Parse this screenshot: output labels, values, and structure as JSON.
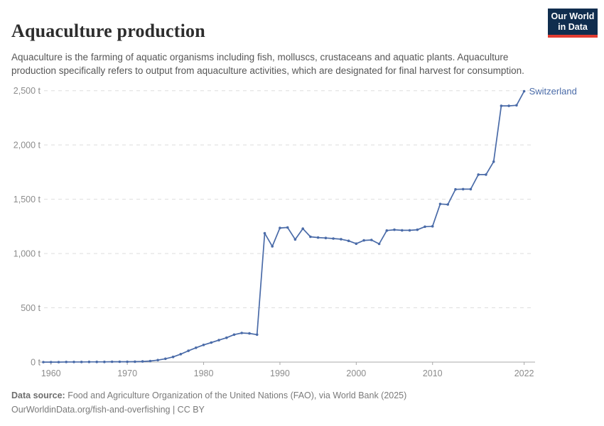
{
  "header": {
    "title": "Aquaculture production",
    "subtitle": "Aquaculture is the farming of aquatic organisms including fish, molluscs, crustaceans and aquatic plants. Aquaculture production specifically refers to output from aquaculture activities, which are designated for final harvest for consumption."
  },
  "logo": {
    "line1": "Our World",
    "line2": "in Data",
    "bg_color": "#102d4e",
    "bar_color": "#e23c31"
  },
  "chart_data": {
    "type": "line",
    "title": "Aquaculture production",
    "unit": "t",
    "xlabel": "",
    "ylabel": "",
    "ylim": [
      0,
      2500
    ],
    "grid": "horizontal-dashed",
    "legend_position": "end-of-line-label",
    "ytick_values": [
      0,
      500,
      1000,
      1500,
      2000,
      2500
    ],
    "ytick_labels": [
      "0 t",
      "500 t",
      "1,000 t",
      "1,500 t",
      "2,000 t",
      "2,500 t"
    ],
    "xtick_values": [
      1960,
      1970,
      1980,
      1990,
      2000,
      2010,
      2022
    ],
    "x": [
      1959,
      1960,
      1961,
      1962,
      1963,
      1964,
      1965,
      1966,
      1967,
      1968,
      1969,
      1970,
      1971,
      1972,
      1973,
      1974,
      1975,
      1976,
      1977,
      1978,
      1979,
      1980,
      1981,
      1982,
      1983,
      1984,
      1985,
      1986,
      1987,
      1988,
      1989,
      1990,
      1991,
      1992,
      1993,
      1994,
      1995,
      1996,
      1997,
      1998,
      1999,
      2000,
      2001,
      2002,
      2003,
      2004,
      2005,
      2006,
      2007,
      2008,
      2009,
      2010,
      2011,
      2012,
      2013,
      2014,
      2015,
      2016,
      2017,
      2018,
      2019,
      2020,
      2021,
      2022
    ],
    "series": [
      {
        "name": "Switzerland",
        "color": "#4a6ba8",
        "values": [
          0,
          0,
          0,
          1,
          1,
          1,
          2,
          2,
          2,
          3,
          3,
          3,
          4,
          6,
          10,
          18,
          31,
          48,
          73,
          104,
          132,
          158,
          180,
          202,
          224,
          253,
          268,
          264,
          253,
          1187,
          1066,
          1235,
          1240,
          1130,
          1229,
          1154,
          1147,
          1143,
          1138,
          1132,
          1117,
          1091,
          1121,
          1125,
          1089,
          1212,
          1219,
          1214,
          1214,
          1219,
          1247,
          1251,
          1456,
          1452,
          1591,
          1593,
          1593,
          1727,
          1727,
          1846,
          2360,
          2360,
          2365,
          2495
        ]
      }
    ]
  },
  "footer": {
    "source_label": "Data source:",
    "source_text": " Food and Agriculture Organization of the United Nations (FAO), via World Bank (2025)",
    "license_link": "OurWorldinData.org/fish-and-overfishing",
    "license_suffix": " | CC BY"
  }
}
